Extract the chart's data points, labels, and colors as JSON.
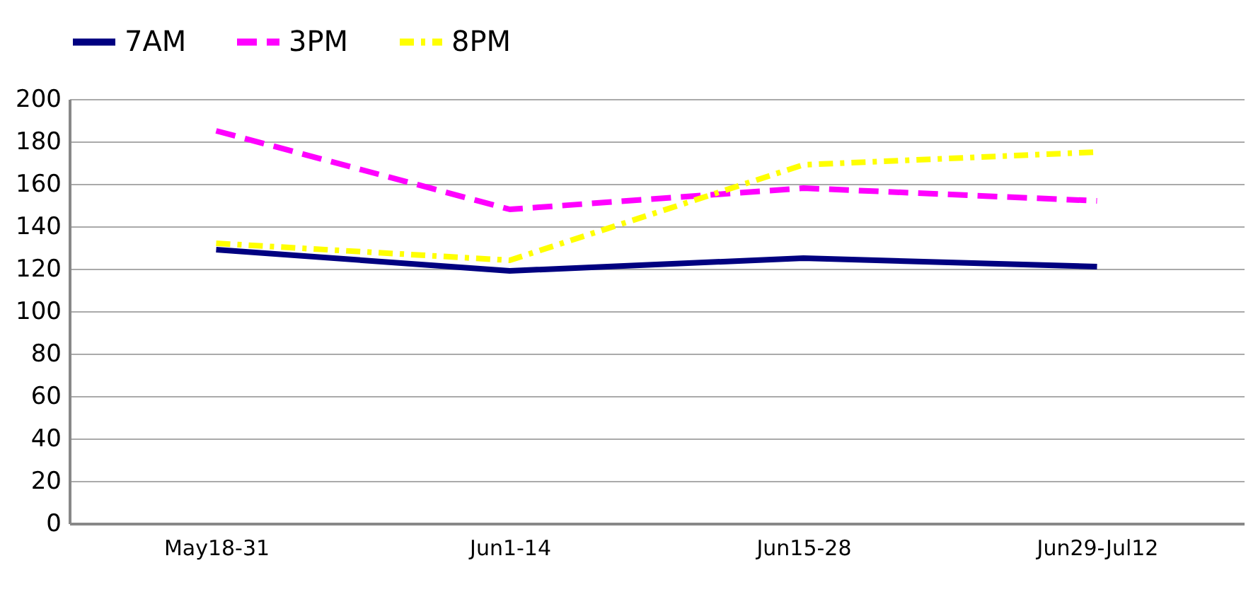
{
  "chart_data": {
    "type": "line",
    "categories": [
      "May18-31",
      "Jun1-14",
      "Jun15-28",
      "Jun29-Jul12"
    ],
    "series": [
      {
        "name": "7AM",
        "color": "#000080",
        "values": [
          129,
          119,
          125,
          121
        ],
        "line_style": "solid"
      },
      {
        "name": "3PM",
        "color": "#ff00ff",
        "values": [
          185,
          148,
          158,
          152
        ],
        "line_style": "dashed"
      },
      {
        "name": "8PM",
        "color": "#ffff00",
        "values": [
          132,
          124,
          169,
          175
        ],
        "line_style": "dotted"
      }
    ],
    "ylim": [
      0,
      200
    ],
    "yticks": [
      0,
      20,
      40,
      60,
      80,
      100,
      120,
      140,
      160,
      180,
      200
    ],
    "grid": "y",
    "legend": "top",
    "marker": "none"
  }
}
